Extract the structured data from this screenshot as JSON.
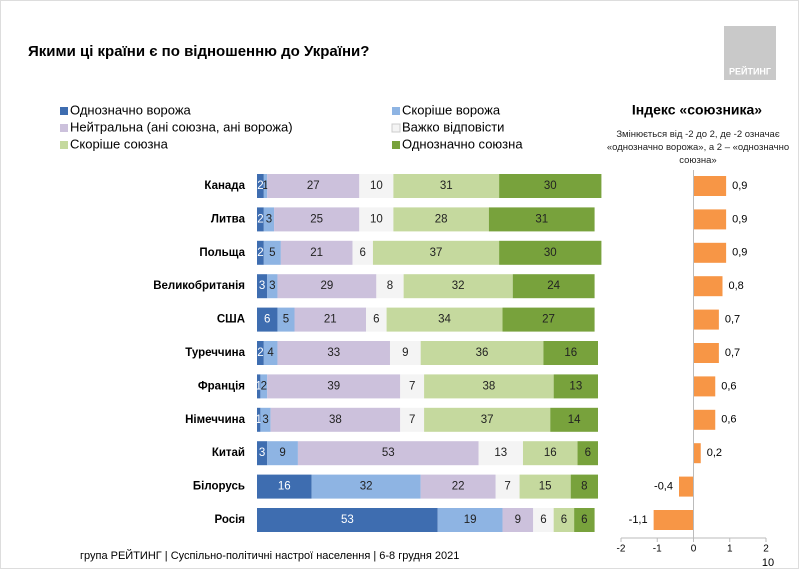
{
  "title": "Якими ці країни є по відношенню до України?",
  "logo": "РЕЙТИНГ",
  "footer": "група РЕЙТИНГ | Суспільно-політичні настрої населення  | 6-8 грудня 2021",
  "page_number": "10",
  "chart_data": [
    {
      "type": "stacked-bar",
      "categories": [
        "Канада",
        "Литва",
        "Польща",
        "Великобританія",
        "США",
        "Туреччина",
        "Франція",
        "Німеччина",
        "Китай",
        "Білорусь",
        "Росія"
      ],
      "xlim": [
        0,
        100
      ],
      "series": [
        {
          "name": "Однозначно ворожа",
          "color": "#3e6db0",
          "values": [
            2,
            2,
            2,
            3,
            6,
            2,
            1,
            1,
            3,
            16,
            53
          ]
        },
        {
          "name": "Скоріше ворожа",
          "color": "#8eb4e3",
          "values": [
            1,
            3,
            5,
            3,
            5,
            4,
            2,
            3,
            9,
            32,
            19
          ]
        },
        {
          "name": "Нейтральна (ані союзна, ані ворожа)",
          "color": "#ccc1dc",
          "values": [
            27,
            25,
            21,
            29,
            21,
            33,
            39,
            38,
            53,
            22,
            9
          ]
        },
        {
          "name": "Важко відповісти",
          "color": "#f4f4f4",
          "values": [
            10,
            10,
            6,
            8,
            6,
            9,
            7,
            7,
            13,
            7,
            6
          ]
        },
        {
          "name": "Скоріше союзна",
          "color": "#c5d99e",
          "values": [
            31,
            28,
            37,
            32,
            34,
            36,
            38,
            37,
            16,
            15,
            6
          ]
        },
        {
          "name": "Однозначно союзна",
          "color": "#78a23c",
          "values": [
            30,
            31,
            30,
            24,
            27,
            16,
            13,
            14,
            6,
            8,
            6
          ]
        }
      ]
    },
    {
      "type": "index-bar",
      "title": "Індекс «союзника»",
      "subtitle": "Змінюється від -2 до 2, де -2 означає «однозначно ворожа», а 2 – «однозначно союзна»",
      "color": "#f79646",
      "values": [
        0.9,
        0.9,
        0.9,
        0.8,
        0.7,
        0.7,
        0.6,
        0.6,
        0.2,
        -0.4,
        -1.1
      ],
      "value_labels": [
        "0,9",
        "0,9",
        "0,9",
        "0,8",
        "0,7",
        "0,7",
        "0,6",
        "0,6",
        "0,2",
        "-0,4",
        "-1,1"
      ],
      "xlim": [
        -2,
        2
      ],
      "xticks": [
        -2,
        -1,
        0,
        1,
        2
      ]
    }
  ]
}
